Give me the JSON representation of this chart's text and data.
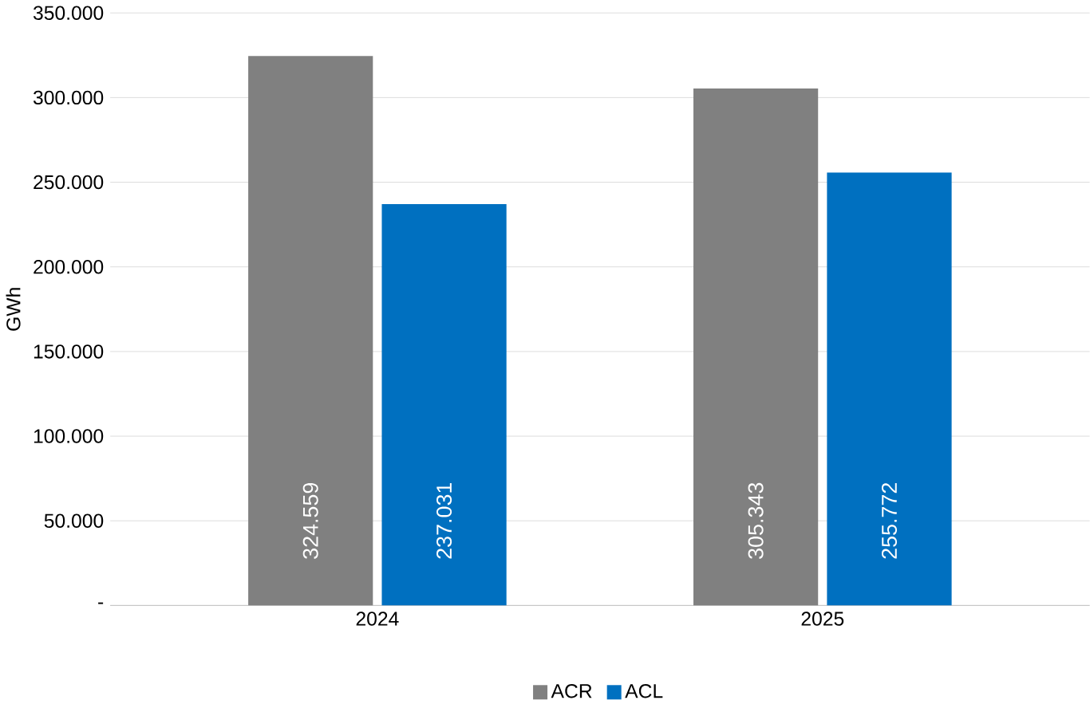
{
  "chart_data": {
    "type": "bar",
    "ylabel": "GWh",
    "categories": [
      "2024",
      "2025"
    ],
    "series": [
      {
        "name": "ACR",
        "color": "#808080",
        "values": [
          324559,
          305343
        ],
        "value_labels": [
          "324.559",
          "305.343"
        ]
      },
      {
        "name": "ACL",
        "color": "#0070c0",
        "values": [
          237031,
          255772
        ],
        "value_labels": [
          "237.031",
          "255.772"
        ]
      }
    ],
    "ylim": [
      0,
      350000
    ],
    "yticks": [
      {
        "value": 0,
        "label": "-"
      },
      {
        "value": 50000,
        "label": "50.000"
      },
      {
        "value": 100000,
        "label": "100.000"
      },
      {
        "value": 150000,
        "label": "150.000"
      },
      {
        "value": 200000,
        "label": "200.000"
      },
      {
        "value": 250000,
        "label": "250.000"
      },
      {
        "value": 300000,
        "label": "300.000"
      },
      {
        "value": 350000,
        "label": "350.000"
      }
    ],
    "grid": "y",
    "legend": "bottom"
  }
}
